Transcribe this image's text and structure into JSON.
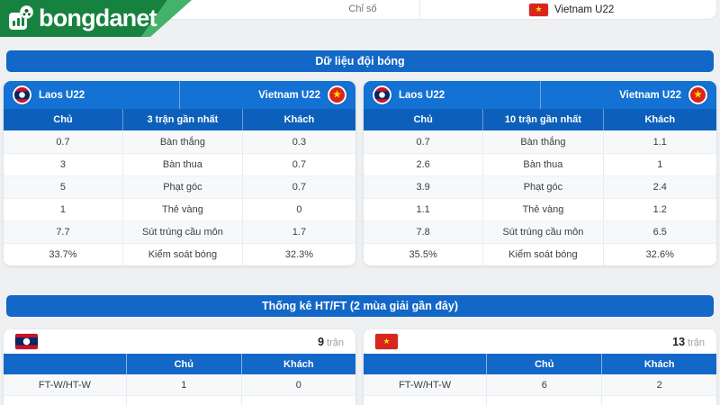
{
  "topbar": {
    "tab_label": "Chỉ số",
    "team_label": "Vietnam U22"
  },
  "logo": {
    "text": "bongdanet"
  },
  "icons": {
    "star": "★"
  },
  "section_team_data": {
    "title": "Dữ liệu đội bóng",
    "tables": [
      {
        "home_team": "Laos U22",
        "away_team": "Vietnam U22",
        "col_home": "Chủ",
        "col_mid": "3 trận gần nhất",
        "col_away": "Khách",
        "rows": [
          {
            "home": "0.7",
            "label": "Bàn thắng",
            "away": "0.3"
          },
          {
            "home": "3",
            "label": "Bàn thua",
            "away": "0.7"
          },
          {
            "home": "5",
            "label": "Phạt góc",
            "away": "0.7"
          },
          {
            "home": "1",
            "label": "Thẻ vàng",
            "away": "0"
          },
          {
            "home": "7.7",
            "label": "Sút trúng cầu môn",
            "away": "1.7"
          },
          {
            "home": "33.7%",
            "label": "Kiểm soát bóng",
            "away": "32.3%"
          }
        ]
      },
      {
        "home_team": "Laos U22",
        "away_team": "Vietnam U22",
        "col_home": "Chủ",
        "col_mid": "10 trận gần nhất",
        "col_away": "Khách",
        "rows": [
          {
            "home": "0.7",
            "label": "Bàn thắng",
            "away": "1.1"
          },
          {
            "home": "2.6",
            "label": "Bàn thua",
            "away": "1"
          },
          {
            "home": "3.9",
            "label": "Phạt góc",
            "away": "2.4"
          },
          {
            "home": "1.1",
            "label": "Thẻ vàng",
            "away": "1.2"
          },
          {
            "home": "7.8",
            "label": "Sút trúng cầu môn",
            "away": "6.5"
          },
          {
            "home": "35.5%",
            "label": "Kiểm soát bóng",
            "away": "32.6%"
          }
        ]
      }
    ]
  },
  "section_htft": {
    "title": "Thống kê HT/FT (2 mùa giải gần đây)",
    "tables": [
      {
        "team": "Laos U22",
        "matches_count": "9",
        "matches_unit": "trận",
        "col_home": "Chủ",
        "col_away": "Khách",
        "rows": [
          {
            "label": "FT-W/HT-W",
            "home": "1",
            "away": "0"
          }
        ]
      },
      {
        "team": "Vietnam U22",
        "matches_count": "13",
        "matches_unit": "trận",
        "col_home": "Chủ",
        "col_away": "Khách",
        "rows": [
          {
            "label": "FT-W/HT-W",
            "home": "6",
            "away": "2"
          }
        ]
      }
    ]
  },
  "colors": {
    "banner_blue": "#1267c7",
    "team_row_blue": "#1372d3",
    "subheader_blue": "#0c60bb",
    "logo_green": "#17823f",
    "logo_accent_green": "#45b269",
    "laos_red": "#ce1126",
    "laos_blue": "#002868",
    "vietnam_red": "#da251d",
    "star_yellow": "#ffde00",
    "page_background": "#eef0f2",
    "row_alt": "#f6f8fa"
  }
}
